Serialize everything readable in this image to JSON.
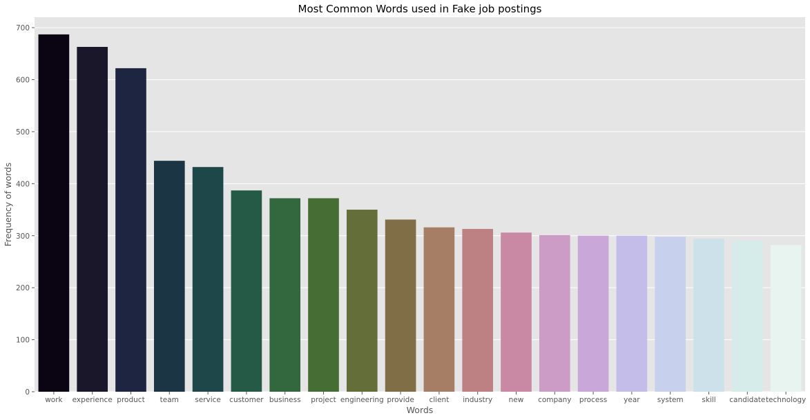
{
  "chart_data": {
    "type": "bar",
    "title": "Most Common Words used in Fake job postings",
    "xlabel": "Words",
    "ylabel": "Frequency of words",
    "ylim": [
      0,
      720
    ],
    "yticks": [
      0,
      100,
      200,
      300,
      400,
      500,
      600,
      700
    ],
    "grid": true,
    "categories": [
      "work",
      "experience",
      "product",
      "team",
      "service",
      "customer",
      "business",
      "project",
      "engineering",
      "provide",
      "client",
      "industry",
      "new",
      "company",
      "process",
      "year",
      "system",
      "skill",
      "candidate",
      "technology"
    ],
    "values": [
      687,
      663,
      622,
      444,
      432,
      387,
      372,
      372,
      350,
      331,
      316,
      313,
      306,
      301,
      300,
      300,
      298,
      294,
      290,
      282
    ],
    "colors": [
      "#0b0513",
      "#191729",
      "#1d2540",
      "#1c3545",
      "#1d4749",
      "#255a47",
      "#33683e",
      "#466d34",
      "#636e39",
      "#806f46",
      "#a67d65",
      "#bd8184",
      "#c989a4",
      "#cc9cc7",
      "#c9a8d9",
      "#c4bdea",
      "#c7d1ee",
      "#cde1ea",
      "#d6ecea",
      "#e8f4f0"
    ]
  }
}
